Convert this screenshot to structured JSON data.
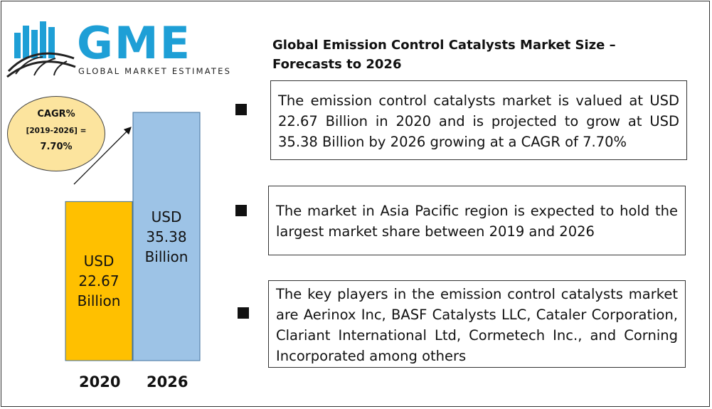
{
  "logo": {
    "name": "GME",
    "tagline": "GLOBAL MARKET ESTIMATES",
    "brand_color": "#1e9fd6"
  },
  "title": "Global Emission Control Catalysts Market Size – Forecasts to 2026",
  "cagr": {
    "line1": "CAGR%",
    "line2": "[2019-2026] =",
    "line3": "7.70%"
  },
  "chart_data": {
    "type": "bar",
    "categories": [
      "2020",
      "2026"
    ],
    "values": [
      22.67,
      35.38
    ],
    "value_labels": [
      "USD\n22.67\nBillion",
      "USD\n35.38\nBillion"
    ],
    "colors": [
      "#ffc000",
      "#9dc3e6"
    ],
    "title": "",
    "xlabel": "",
    "ylabel": ""
  },
  "points": [
    "The emission control catalysts market is valued at USD 22.67 Billion in 2020 and is projected to grow at USD 35.38 Billion by 2026 growing at a CAGR of 7.70%",
    "The market in Asia Pacific region is expected to hold the largest market share between 2019 and 2026",
    "The key players in the emission control catalysts market are  Aerinox Inc, BASF Catalysts LLC, Cataler Corporation, Clariant International Ltd, Cormetech Inc., and Corning Incorporated among others"
  ]
}
